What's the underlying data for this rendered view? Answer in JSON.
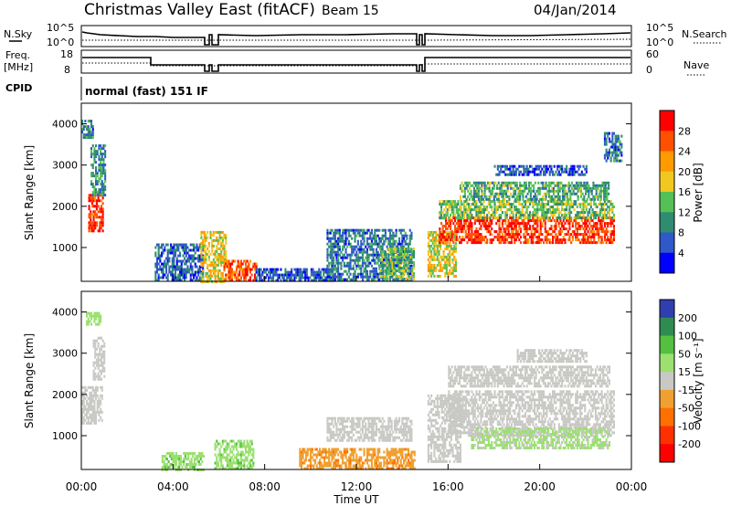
{
  "header": {
    "station": "Christmas Valley East (fitACF)",
    "beam": "Beam 15",
    "date": "04/Jan/2014"
  },
  "params": {
    "nsky_label": "N.Sky",
    "nsky_ticks": [
      "10^5",
      "10^0"
    ],
    "nsearch_label": "N.Search",
    "nsearch_ticks": [
      "10^5",
      "10^0"
    ],
    "freq_label": "Freq.",
    "freq_unit": "[MHz]",
    "freq_ticks": [
      "18",
      "8"
    ],
    "nave_label": "Nave",
    "nave_ticks": [
      "60",
      "0"
    ],
    "cpid_label": "CPID",
    "cpid_value": "normal (fast) 151 IF"
  },
  "chart_data": [
    {
      "type": "heatmap",
      "name": "power",
      "ylabel": "Slant Range [km]",
      "yticks": [
        1000,
        2000,
        3000,
        4000
      ],
      "ylim": [
        180,
        4500
      ],
      "xlim": [
        0,
        24
      ],
      "colorbar": {
        "label": "Power [dB]",
        "ticks": [
          4,
          8,
          12,
          16,
          20,
          24,
          28
        ],
        "colors": [
          "#0000ff",
          "#2f58c8",
          "#2f8c70",
          "#55c055",
          "#f0c820",
          "#ff9a00",
          "#ff5000",
          "#ff0000"
        ]
      },
      "regions": [
        {
          "t": [
            0.3,
            0.9
          ],
          "r": [
            1400,
            2300
          ],
          "level": 28
        },
        {
          "t": [
            0.4,
            1.0
          ],
          "r": [
            2300,
            3500
          ],
          "level": 10
        },
        {
          "t": [
            0.0,
            0.5
          ],
          "r": [
            3700,
            4100
          ],
          "level": 8
        },
        {
          "t": [
            3.2,
            5.3
          ],
          "r": [
            200,
            1100
          ],
          "level": 7
        },
        {
          "t": [
            5.2,
            6.3
          ],
          "r": [
            200,
            1400
          ],
          "level": 18
        },
        {
          "t": [
            6.2,
            7.6
          ],
          "r": [
            200,
            700
          ],
          "level": 26
        },
        {
          "t": [
            7.6,
            11.0
          ],
          "r": [
            200,
            500
          ],
          "level": 6
        },
        {
          "t": [
            10.7,
            14.4
          ],
          "r": [
            250,
            1450
          ],
          "level": 8
        },
        {
          "t": [
            13.0,
            14.5
          ],
          "r": [
            250,
            1000
          ],
          "level": 14
        },
        {
          "t": [
            15.1,
            16.3
          ],
          "r": [
            300,
            1400
          ],
          "level": 18
        },
        {
          "t": [
            15.6,
            23.2
          ],
          "r": [
            1150,
            1750
          ],
          "level": 28
        },
        {
          "t": [
            15.6,
            23.2
          ],
          "r": [
            1750,
            2150
          ],
          "level": 14
        },
        {
          "t": [
            16.5,
            23.0
          ],
          "r": [
            2200,
            2600
          ],
          "level": 12
        },
        {
          "t": [
            18.0,
            22.0
          ],
          "r": [
            2800,
            3000
          ],
          "level": 6
        },
        {
          "t": [
            22.8,
            23.6
          ],
          "r": [
            3100,
            3800
          ],
          "level": 8
        }
      ]
    },
    {
      "type": "heatmap",
      "name": "velocity",
      "ylabel": "Slant Range [km]",
      "yticks": [
        1000,
        2000,
        3000,
        4000
      ],
      "ylim": [
        180,
        4500
      ],
      "xlim": [
        0,
        24
      ],
      "colorbar": {
        "label": "Velocity [m s⁻¹]",
        "ticks": [
          200,
          100,
          50,
          15,
          -15,
          -50,
          -100,
          -200
        ],
        "colors": [
          "#2f3fb0",
          "#2f8c50",
          "#55c040",
          "#9be070",
          "#c8c8c4",
          "#f0a030",
          "#ff7000",
          "#ff3000",
          "#ff0000"
        ]
      },
      "regions": [
        {
          "t": [
            0.0,
            0.9
          ],
          "r": [
            1300,
            2200
          ],
          "level": 0
        },
        {
          "t": [
            0.5,
            1.0
          ],
          "r": [
            2400,
            3400
          ],
          "level": 0
        },
        {
          "t": [
            0.2,
            0.8
          ],
          "r": [
            3700,
            4000
          ],
          "level": 30
        },
        {
          "t": [
            3.5,
            5.3
          ],
          "r": [
            200,
            600
          ],
          "level": 40
        },
        {
          "t": [
            5.8,
            7.5
          ],
          "r": [
            200,
            900
          ],
          "level": 40
        },
        {
          "t": [
            9.5,
            14.5
          ],
          "r": [
            200,
            700
          ],
          "level": -40
        },
        {
          "t": [
            10.7,
            14.4
          ],
          "r": [
            900,
            1450
          ],
          "level": 0
        },
        {
          "t": [
            15.1,
            16.5
          ],
          "r": [
            400,
            2000
          ],
          "level": 0
        },
        {
          "t": [
            16.0,
            23.2
          ],
          "r": [
            1000,
            2100
          ],
          "level": 0
        },
        {
          "t": [
            16.0,
            23.0
          ],
          "r": [
            2200,
            2700
          ],
          "level": 0
        },
        {
          "t": [
            17.0,
            23.0
          ],
          "r": [
            700,
            1200
          ],
          "level": 20
        },
        {
          "t": [
            19.0,
            22.0
          ],
          "r": [
            2800,
            3100
          ],
          "level": 0
        }
      ]
    }
  ],
  "xaxis": {
    "label": "Time UT",
    "ticks": [
      "00:00",
      "04:00",
      "08:00",
      "12:00",
      "16:00",
      "20:00",
      "00:00"
    ]
  }
}
